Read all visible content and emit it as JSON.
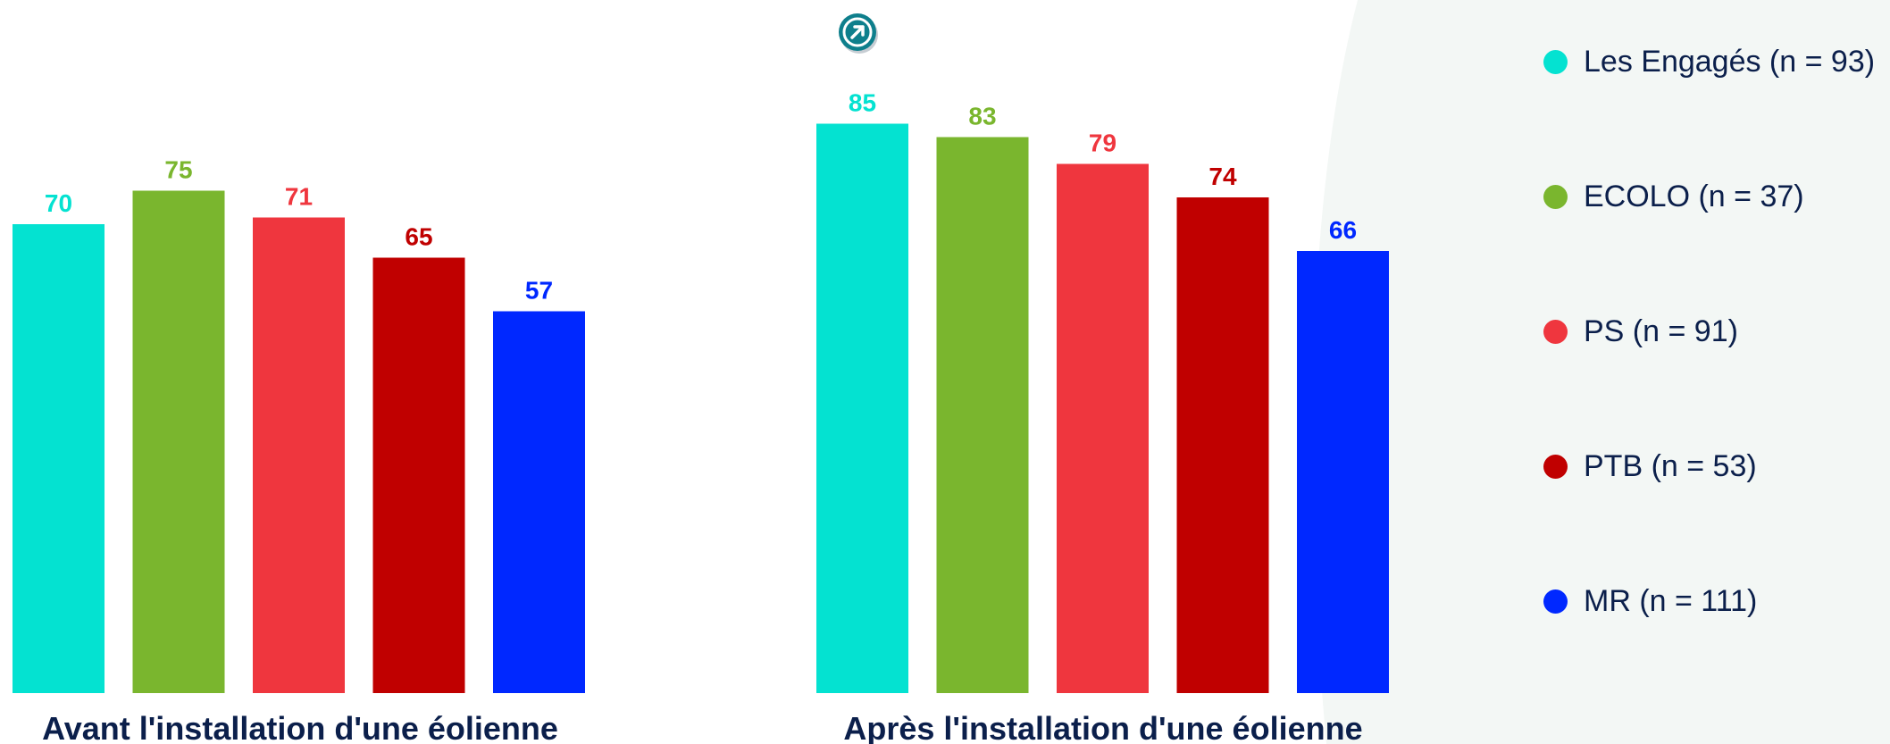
{
  "chart_data": {
    "type": "bar",
    "categories": [
      "Les Engagés (n = 93)",
      "ECOLO (n = 37)",
      "PS (n = 91)",
      "PTB (n = 53)",
      "MR (n = 111)"
    ],
    "colors": [
      "#04e2d1",
      "#7ab62e",
      "#ef363e",
      "#c00000",
      "#0028ff"
    ],
    "ylim": [
      0,
      100
    ],
    "grid": false,
    "legend_position": "right",
    "panels": [
      {
        "title": "Avant l'installation d'une éolienne",
        "values": [
          70,
          75,
          71,
          65,
          57
        ]
      },
      {
        "title": "Après l'installation d'une éolienne",
        "values": [
          85,
          83,
          79,
          74,
          66
        ]
      }
    ]
  },
  "badge_icon": "arrow-up-right-icon"
}
